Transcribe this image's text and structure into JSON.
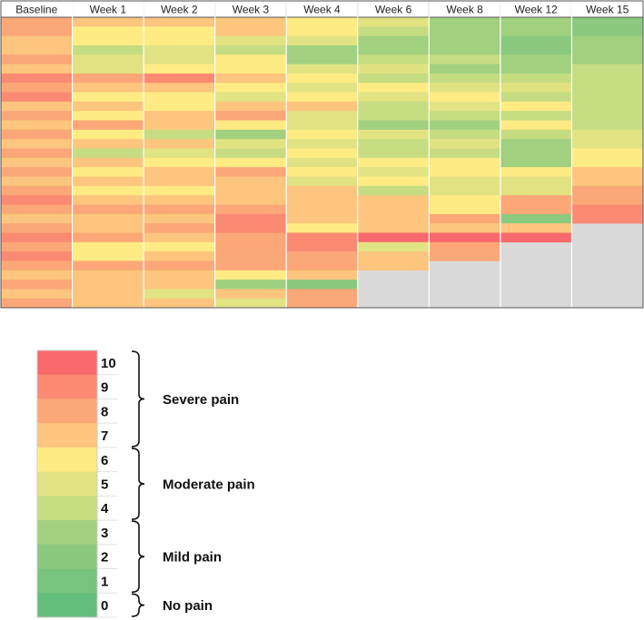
{
  "chart_data": {
    "type": "heatmap",
    "columns": [
      "Baseline",
      "Week 1",
      "Week 2",
      "Week 3",
      "Week 4",
      "Week 6",
      "Week 8",
      "Week 12",
      "Week 15"
    ],
    "column_values": [
      [
        8,
        8,
        7,
        7,
        8,
        7,
        9,
        8,
        9,
        7,
        8,
        7,
        8,
        7,
        8,
        7,
        8,
        7,
        8,
        9,
        8,
        7,
        8,
        9,
        8,
        9,
        8,
        7,
        8,
        7,
        8
      ],
      [
        7,
        6,
        6,
        4,
        5,
        5,
        8,
        7,
        6,
        7,
        6,
        8,
        6,
        7,
        4,
        7,
        6,
        7,
        6,
        7,
        8,
        7,
        7,
        8,
        6,
        6,
        8,
        7,
        7,
        7,
        7
      ],
      [
        7,
        6,
        6,
        5,
        5,
        6,
        9,
        7,
        6,
        6,
        7,
        7,
        4,
        7,
        5,
        6,
        7,
        7,
        6,
        7,
        8,
        7,
        8,
        7,
        6,
        7,
        8,
        7,
        7,
        5,
        7
      ],
      [
        7,
        7,
        5,
        4,
        6,
        6,
        7,
        6,
        5,
        7,
        8,
        6,
        3,
        5,
        4,
        6,
        8,
        7,
        7,
        7,
        8,
        9,
        9,
        8,
        8,
        8,
        8,
        6,
        3,
        7,
        5
      ],
      [
        6,
        6,
        5,
        3,
        3,
        5,
        6,
        5,
        6,
        7,
        5,
        5,
        6,
        5,
        6,
        5,
        6,
        5,
        7,
        7,
        7,
        7,
        6,
        9,
        9,
        8,
        8,
        7,
        2,
        8,
        8
      ],
      [
        5,
        4,
        3,
        3,
        4,
        5,
        4,
        6,
        5,
        4,
        4,
        3,
        5,
        4,
        4,
        6,
        5,
        6,
        4,
        7,
        7,
        7,
        7,
        10,
        5,
        7,
        7
      ],
      [
        3,
        3,
        3,
        3,
        4,
        3,
        4,
        5,
        6,
        5,
        4,
        3,
        4,
        5,
        4,
        6,
        6,
        5,
        5,
        6,
        6,
        8,
        7,
        10,
        8,
        8
      ],
      [
        3,
        3,
        2,
        2,
        3,
        3,
        4,
        5,
        4,
        6,
        4,
        6,
        4,
        3,
        3,
        3,
        6,
        5,
        5,
        8,
        8,
        2,
        7,
        10
      ],
      [
        2,
        2,
        3,
        3,
        3,
        4,
        4,
        4,
        4,
        4,
        4,
        4,
        5,
        5,
        6,
        6,
        7,
        7,
        8,
        8,
        9,
        9
      ]
    ],
    "scale": [
      0,
      1,
      2,
      3,
      4,
      5,
      6,
      7,
      8,
      9,
      10
    ],
    "scale_colors": [
      "#63be7b",
      "#76c47d",
      "#8bc97e",
      "#a1d07f",
      "#c6dc80",
      "#e1e383",
      "#ffeb84",
      "#fdc57d",
      "#fca777",
      "#fa8a72",
      "#f8696b"
    ],
    "empty_color": "#d9d9d9",
    "categories": [
      {
        "label": "Severe pain",
        "values": [
          7,
          10
        ]
      },
      {
        "label": "Moderate pain",
        "values": [
          4,
          6
        ]
      },
      {
        "label": "Mild pain",
        "values": [
          1,
          3
        ]
      },
      {
        "label": "No pain",
        "values": [
          0,
          0
        ]
      }
    ]
  }
}
